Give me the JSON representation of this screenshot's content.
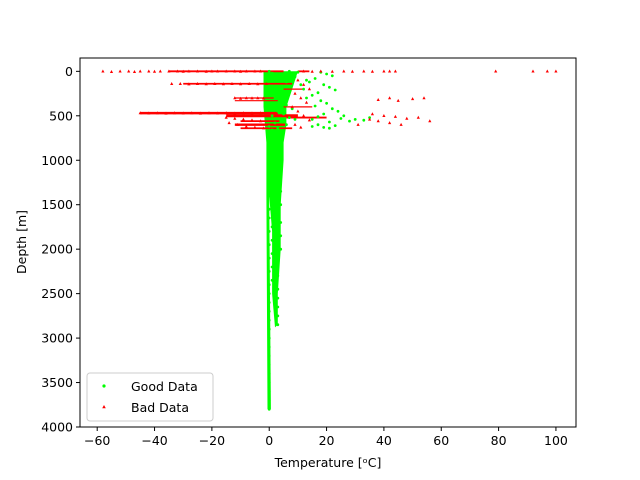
{
  "chart_data": {
    "type": "scatter",
    "title": "",
    "xlabel": "Temperature [ᵒC]",
    "ylabel": "Depth [m]",
    "xlim": [
      -66,
      107
    ],
    "ylim": [
      4000,
      -150
    ],
    "y_inverted": true,
    "xticks": [
      -60,
      -40,
      -20,
      0,
      20,
      40,
      60,
      80,
      100
    ],
    "yticks": [
      0,
      500,
      1000,
      1500,
      2000,
      2500,
      3000,
      3500,
      4000
    ],
    "grid": false,
    "legend_position": "lower-left",
    "series": [
      {
        "name": "Good Data",
        "color": "#00ff00",
        "marker": "circle",
        "points": [
          [
            0,
            0
          ],
          [
            1,
            20
          ],
          [
            2,
            40
          ],
          [
            3,
            60
          ],
          [
            4,
            80
          ],
          [
            5,
            100
          ],
          [
            6,
            120
          ],
          [
            7,
            0
          ],
          [
            8,
            30
          ],
          [
            9,
            60
          ],
          [
            10,
            10
          ],
          [
            -1,
            200
          ],
          [
            0,
            250
          ],
          [
            2,
            300
          ],
          [
            4,
            350
          ],
          [
            6,
            380
          ],
          [
            8,
            420
          ],
          [
            3,
            450
          ],
          [
            5,
            480
          ],
          [
            1,
            500
          ],
          [
            7,
            520
          ],
          [
            9,
            540
          ],
          [
            4,
            560
          ],
          [
            2,
            580
          ],
          [
            6,
            600
          ],
          [
            0,
            620
          ],
          [
            3,
            640
          ],
          [
            1,
            660
          ],
          [
            5,
            680
          ],
          [
            2,
            700
          ],
          [
            4,
            720
          ],
          [
            1,
            740
          ],
          [
            3,
            760
          ],
          [
            0,
            780
          ],
          [
            2,
            800
          ],
          [
            4,
            820
          ],
          [
            1,
            840
          ],
          [
            3,
            860
          ],
          [
            0,
            880
          ],
          [
            2,
            900
          ],
          [
            4,
            920
          ],
          [
            1,
            940
          ],
          [
            3,
            960
          ],
          [
            0,
            980
          ],
          [
            2,
            1000
          ],
          [
            18,
            10
          ],
          [
            20,
            30
          ],
          [
            22,
            50
          ],
          [
            16,
            80
          ],
          [
            14,
            120
          ],
          [
            19,
            150
          ],
          [
            21,
            180
          ],
          [
            23,
            210
          ],
          [
            17,
            240
          ],
          [
            15,
            270
          ],
          [
            13,
            300
          ],
          [
            18,
            330
          ],
          [
            20,
            360
          ],
          [
            16,
            390
          ],
          [
            22,
            420
          ],
          [
            24,
            450
          ],
          [
            19,
            480
          ],
          [
            17,
            510
          ],
          [
            15,
            540
          ],
          [
            21,
            570
          ],
          [
            25,
            530
          ],
          [
            28,
            560
          ],
          [
            30,
            540
          ],
          [
            35,
            520
          ],
          [
            33,
            550
          ],
          [
            26,
            500
          ],
          [
            12,
            200
          ],
          [
            11,
            150
          ],
          [
            13,
            100
          ],
          [
            17,
            600
          ],
          [
            19,
            630
          ],
          [
            21,
            640
          ],
          [
            15,
            620
          ],
          [
            23,
            610
          ],
          [
            1,
            1100
          ],
          [
            2,
            1150
          ],
          [
            0,
            1200
          ],
          [
            3,
            1250
          ],
          [
            1,
            1300
          ],
          [
            4,
            1350
          ],
          [
            0,
            1400
          ],
          [
            2,
            1450
          ],
          [
            4,
            1500
          ],
          [
            0,
            1550
          ],
          [
            3,
            1600
          ],
          [
            0,
            1650
          ],
          [
            4,
            1700
          ],
          [
            1,
            1750
          ],
          [
            0,
            1800
          ],
          [
            4,
            1850
          ],
          [
            1,
            1900
          ],
          [
            0,
            1950
          ],
          [
            4,
            2000
          ],
          [
            1,
            2050
          ],
          [
            0,
            2100
          ],
          [
            3,
            2150
          ],
          [
            1,
            2200
          ],
          [
            0,
            2250
          ],
          [
            3,
            2300
          ],
          [
            1,
            2350
          ],
          [
            0,
            2400
          ],
          [
            3,
            2450
          ],
          [
            0,
            2500
          ],
          [
            3,
            2550
          ],
          [
            0,
            2600
          ],
          [
            3,
            2650
          ],
          [
            0,
            2700
          ],
          [
            3,
            2750
          ],
          [
            0,
            2800
          ],
          [
            3,
            2850
          ],
          [
            0,
            2900
          ],
          [
            0,
            3000
          ],
          [
            0,
            3100
          ],
          [
            0,
            3200
          ],
          [
            0,
            3300
          ],
          [
            0,
            3400
          ],
          [
            0,
            3500
          ],
          [
            0,
            3600
          ],
          [
            0,
            3700
          ],
          [
            0,
            3800
          ]
        ]
      },
      {
        "name": "Bad Data",
        "color": "#ff0000",
        "marker": "triangle",
        "points": [
          [
            -58,
            0
          ],
          [
            -55,
            5
          ],
          [
            -52,
            0
          ],
          [
            -49,
            0
          ],
          [
            -47,
            5
          ],
          [
            -45,
            0
          ],
          [
            -42,
            0
          ],
          [
            -40,
            3
          ],
          [
            -38,
            0
          ],
          [
            -35,
            0
          ],
          [
            -32,
            0
          ],
          [
            -30,
            3
          ],
          [
            -28,
            0
          ],
          [
            -25,
            0
          ],
          [
            -22,
            2
          ],
          [
            -20,
            0
          ],
          [
            -18,
            0
          ],
          [
            -15,
            0
          ],
          [
            -12,
            0
          ],
          [
            -10,
            2
          ],
          [
            -8,
            0
          ],
          [
            -5,
            0
          ],
          [
            -3,
            0
          ],
          [
            -34,
            140
          ],
          [
            -31,
            140
          ],
          [
            -28,
            145
          ],
          [
            -25,
            140
          ],
          [
            -22,
            142
          ],
          [
            -19,
            140
          ],
          [
            -16,
            143
          ],
          [
            -13,
            140
          ],
          [
            -10,
            142
          ],
          [
            -7,
            140
          ],
          [
            -4,
            142
          ],
          [
            -1,
            140
          ],
          [
            -12,
            300
          ],
          [
            -10,
            305
          ],
          [
            -8,
            300
          ],
          [
            -6,
            302
          ],
          [
            -4,
            300
          ],
          [
            -2,
            303
          ],
          [
            -45,
            470
          ],
          [
            -42,
            472
          ],
          [
            -39,
            470
          ],
          [
            -36,
            473
          ],
          [
            -33,
            470
          ],
          [
            -30,
            472
          ],
          [
            -27,
            470
          ],
          [
            -24,
            473
          ],
          [
            -21,
            470
          ],
          [
            -18,
            472
          ],
          [
            -15,
            470
          ],
          [
            -12,
            473
          ],
          [
            -9,
            470
          ],
          [
            -6,
            472
          ],
          [
            -3,
            470
          ],
          [
            -15,
            520
          ],
          [
            -12,
            530
          ],
          [
            -9,
            540
          ],
          [
            -6,
            550
          ],
          [
            -3,
            560
          ],
          [
            -14,
            580
          ],
          [
            -11,
            600
          ],
          [
            -8,
            620
          ],
          [
            -5,
            630
          ],
          [
            -2,
            640
          ],
          [
            12,
            0
          ],
          [
            15,
            2
          ],
          [
            18,
            0
          ],
          [
            22,
            2
          ],
          [
            26,
            0
          ],
          [
            29,
            3
          ],
          [
            33,
            0
          ],
          [
            36,
            2
          ],
          [
            40,
            0
          ],
          [
            42,
            0
          ],
          [
            44,
            0
          ],
          [
            79,
            0
          ],
          [
            92,
            0
          ],
          [
            97,
            0
          ],
          [
            100,
            0
          ],
          [
            10,
            100
          ],
          [
            12,
            150
          ],
          [
            14,
            200
          ],
          [
            9,
            250
          ],
          [
            11,
            300
          ],
          [
            13,
            350
          ],
          [
            8,
            400
          ],
          [
            10,
            450
          ],
          [
            12,
            500
          ],
          [
            14,
            550
          ],
          [
            9,
            600
          ],
          [
            11,
            630
          ],
          [
            38,
            320
          ],
          [
            42,
            300
          ],
          [
            45,
            330
          ],
          [
            50,
            310
          ],
          [
            54,
            300
          ],
          [
            36,
            480
          ],
          [
            40,
            500
          ],
          [
            44,
            510
          ],
          [
            48,
            530
          ],
          [
            52,
            520
          ],
          [
            56,
            560
          ],
          [
            35,
            540
          ],
          [
            38,
            560
          ],
          [
            42,
            580
          ],
          [
            46,
            600
          ],
          [
            31,
            600
          ]
        ]
      }
    ]
  }
}
